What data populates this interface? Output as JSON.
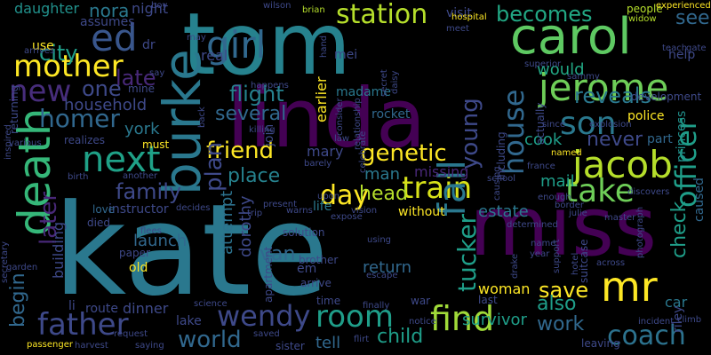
{
  "words": [
    {
      "text": "kate",
      "color": "#2a788e"
    },
    {
      "text": "tom",
      "color": "#26828e"
    },
    {
      "text": "linda",
      "color": "#440154"
    },
    {
      "text": "miss",
      "color": "#440154"
    },
    {
      "text": "carol",
      "color": "#5ec962"
    },
    {
      "text": "mr",
      "color": "#fde725"
    },
    {
      "text": "burke",
      "color": "#2a788e"
    },
    {
      "text": "jacob",
      "color": "#b5de2b"
    },
    {
      "text": "jerome",
      "color": "#6ece58"
    },
    {
      "text": "girl",
      "color": "#31688e"
    },
    {
      "text": "death",
      "color": "#35b779"
    },
    {
      "text": "mother",
      "color": "#fde725"
    },
    {
      "text": "father",
      "color": "#3e4989"
    },
    {
      "text": "room",
      "color": "#1f9e89"
    },
    {
      "text": "find",
      "color": "#a0da39"
    },
    {
      "text": "coach",
      "color": "#2c728e"
    },
    {
      "text": "train",
      "color": "#d8e219"
    },
    {
      "text": "son",
      "color": "#2a788e"
    },
    {
      "text": "take",
      "color": "#6ece58"
    },
    {
      "text": "ed",
      "color": "#39568c"
    },
    {
      "text": "next",
      "color": "#1fa187"
    },
    {
      "text": "new",
      "color": "#472d7b"
    },
    {
      "text": "fall",
      "color": "#2a788e"
    },
    {
      "text": "house",
      "color": "#31688e"
    },
    {
      "text": "wendy",
      "color": "#3e4989"
    },
    {
      "text": "day",
      "color": "#fde725"
    },
    {
      "text": "homer",
      "color": "#31688e"
    },
    {
      "text": "officer",
      "color": "#1f9e89"
    },
    {
      "text": "station",
      "color": "#b5de2b"
    },
    {
      "text": "family",
      "color": "#3e4989"
    },
    {
      "text": "friend",
      "color": "#fde725"
    },
    {
      "text": "genetic",
      "color": "#fde725"
    },
    {
      "text": "young",
      "color": "#3e4989"
    },
    {
      "text": "tucker",
      "color": "#1f9e89"
    },
    {
      "text": "later",
      "color": "#482878"
    },
    {
      "text": "save",
      "color": "#fde725"
    },
    {
      "text": "world",
      "color": "#31688e"
    },
    {
      "text": "becomes",
      "color": "#22a884"
    },
    {
      "text": "reveals",
      "color": "#2a788e"
    },
    {
      "text": "one",
      "color": "#3e4989"
    },
    {
      "text": "city",
      "color": "#1f9e89"
    },
    {
      "text": "several",
      "color": "#31688e"
    },
    {
      "text": "plan",
      "color": "#3e4989"
    },
    {
      "text": "flight",
      "color": "#26828e"
    },
    {
      "text": "late",
      "color": "#482878"
    },
    {
      "text": "never",
      "color": "#3e4989"
    },
    {
      "text": "see",
      "color": "#31688e"
    },
    {
      "text": "work",
      "color": "#31688e"
    },
    {
      "text": "also",
      "color": "#1f9e89"
    },
    {
      "text": "van",
      "color": "#31688e"
    },
    {
      "text": "child",
      "color": "#1f9e89"
    },
    {
      "text": "place",
      "color": "#26828e"
    },
    {
      "text": "head",
      "color": "#b5de2b"
    },
    {
      "text": "check",
      "color": "#1f9e89"
    },
    {
      "text": "begin",
      "color": "#31688e"
    },
    {
      "text": "household",
      "color": "#3e4989"
    },
    {
      "text": "estate",
      "color": "#2a788e"
    },
    {
      "text": "mail",
      "color": "#1f9e89"
    },
    {
      "text": "man",
      "color": "#2a788e"
    },
    {
      "text": "nora",
      "color": "#2a788e"
    },
    {
      "text": "would",
      "color": "#22a884"
    },
    {
      "text": "cook",
      "color": "#1f9e89"
    },
    {
      "text": "launch",
      "color": "#31688e"
    },
    {
      "text": "york",
      "color": "#2a788e"
    },
    {
      "text": "attempt",
      "color": "#2c728e"
    },
    {
      "text": "dorothy",
      "color": "#3e4989"
    },
    {
      "text": "return",
      "color": "#31688e"
    },
    {
      "text": "dinner",
      "color": "#3e4989"
    },
    {
      "text": "survivor",
      "color": "#1f9e89"
    },
    {
      "text": "tell",
      "color": "#31688e"
    },
    {
      "text": "woman",
      "color": "#fde725"
    },
    {
      "text": "mary",
      "color": "#3e4989"
    },
    {
      "text": "missing",
      "color": "#482878"
    },
    {
      "text": "building",
      "color": "#3e4989"
    },
    {
      "text": "daughter",
      "color": "#21918c"
    },
    {
      "text": "assumes",
      "color": "#3e4989"
    },
    {
      "text": "night",
      "color": "#3e4989"
    },
    {
      "text": "real",
      "color": "#3e4989"
    },
    {
      "text": "madame",
      "color": "#2a788e"
    },
    {
      "text": "earlier",
      "color": "#fde725"
    },
    {
      "text": "police",
      "color": "#fde725"
    },
    {
      "text": "car",
      "color": "#2a788e"
    },
    {
      "text": "riley",
      "color": "#3e4989"
    },
    {
      "text": "caused",
      "color": "#31688e"
    },
    {
      "text": "part",
      "color": "#31688e"
    },
    {
      "text": "development",
      "color": "#3e4989"
    },
    {
      "text": "help",
      "color": "#3e4989"
    },
    {
      "text": "princess",
      "color": "#21918c"
    },
    {
      "text": "rocket",
      "color": "#31688e"
    },
    {
      "text": "join",
      "color": "#3e4989"
    },
    {
      "text": "mei",
      "color": "#3e4989"
    },
    {
      "text": "instructor",
      "color": "#3e4989"
    },
    {
      "text": "love",
      "color": "#31688e"
    },
    {
      "text": "paper",
      "color": "#3e4989"
    },
    {
      "text": "old",
      "color": "#fde725"
    },
    {
      "text": "route",
      "color": "#3e4989"
    },
    {
      "text": "lake",
      "color": "#3e4989"
    },
    {
      "text": "sister",
      "color": "#3e4989"
    },
    {
      "text": "brother",
      "color": "#3e4989"
    },
    {
      "text": "arrive",
      "color": "#3e4989"
    },
    {
      "text": "em",
      "color": "#3e4989"
    },
    {
      "text": "life",
      "color": "#2a788e"
    },
    {
      "text": "without",
      "color": "#fde725"
    },
    {
      "text": "visit",
      "color": "#3e4989"
    },
    {
      "text": "use",
      "color": "#fde725"
    },
    {
      "text": "returning",
      "color": "#3e4989"
    },
    {
      "text": "realizes",
      "color": "#3e4989"
    },
    {
      "text": "mine",
      "color": "#3e4989"
    },
    {
      "text": "apartment",
      "color": "#3e4989"
    },
    {
      "text": "last",
      "color": "#3e4989"
    },
    {
      "text": "war",
      "color": "#3e4989"
    },
    {
      "text": "time",
      "color": "#3e4989"
    },
    {
      "text": "solution",
      "color": "#3e4989"
    },
    {
      "text": "including",
      "color": "#3e4989"
    },
    {
      "text": "actually",
      "color": "#3e4989"
    },
    {
      "text": "suitcase",
      "color": "#3e4989"
    },
    {
      "text": "leaving",
      "color": "#3e4989"
    },
    {
      "text": "hospital",
      "color": "#fde725"
    },
    {
      "text": "brian",
      "color": "#b5de2b"
    },
    {
      "text": "people",
      "color": "#b5de2b"
    },
    {
      "text": "experienced",
      "color": "#fde725"
    },
    {
      "text": "widow",
      "color": "#b5de2b"
    },
    {
      "text": "dr",
      "color": "#3e4989"
    },
    {
      "text": "must",
      "color": "#fde725"
    },
    {
      "text": "li",
      "color": "#3e4989"
    },
    {
      "text": "science",
      "color": "#3e4989"
    },
    {
      "text": "passenger",
      "color": "#fde725"
    },
    {
      "text": "harvest",
      "color": "#3e4989"
    },
    {
      "text": "saying",
      "color": "#3e4989"
    },
    {
      "text": "saved",
      "color": "#3e4989"
    },
    {
      "text": "finally",
      "color": "#3e4989"
    },
    {
      "text": "using",
      "color": "#3e4989"
    },
    {
      "text": "name",
      "color": "#3e4989"
    },
    {
      "text": "year",
      "color": "#3e4989"
    },
    {
      "text": "photograph",
      "color": "#3e4989"
    },
    {
      "text": "across",
      "color": "#3e4989"
    },
    {
      "text": "master",
      "color": "#3e4989"
    },
    {
      "text": "julie",
      "color": "#3e4989"
    },
    {
      "text": "discovers",
      "color": "#3e4989"
    },
    {
      "text": "named",
      "color": "#fde725"
    },
    {
      "text": "france",
      "color": "#3e4989"
    },
    {
      "text": "law",
      "color": "#3e4989"
    },
    {
      "text": "barely",
      "color": "#3e4989"
    },
    {
      "text": "died",
      "color": "#3e4989"
    },
    {
      "text": "decides",
      "color": "#3e4989"
    },
    {
      "text": "trip",
      "color": "#3e4989"
    },
    {
      "text": "present",
      "color": "#3e4989"
    },
    {
      "text": "upon",
      "color": "#3e4989"
    },
    {
      "text": "warns",
      "color": "#3e4989"
    },
    {
      "text": "vision",
      "color": "#3e4989"
    },
    {
      "text": "expose",
      "color": "#3e4989"
    },
    {
      "text": "determined",
      "color": "#3e4989"
    },
    {
      "text": "since",
      "color": "#3e4989"
    },
    {
      "text": "killing",
      "color": "#3e4989"
    },
    {
      "text": "happens",
      "color": "#3e4989"
    },
    {
      "text": "secretary",
      "color": "#3e4989"
    },
    {
      "text": "various",
      "color": "#3e4989"
    },
    {
      "text": "inspired",
      "color": "#3e4989"
    },
    {
      "text": "garden",
      "color": "#3e4989"
    },
    {
      "text": "another",
      "color": "#3e4989"
    },
    {
      "text": "birth",
      "color": "#3e4989"
    },
    {
      "text": "flees",
      "color": "#3e4989"
    },
    {
      "text": "request",
      "color": "#3e4989"
    },
    {
      "text": "arrives",
      "color": "#3e4989"
    },
    {
      "text": "wilson",
      "color": "#3e4989"
    },
    {
      "text": "meet",
      "color": "#3e4989"
    },
    {
      "text": "superior",
      "color": "#3e4989"
    },
    {
      "text": "teach",
      "color": "#3e4989"
    },
    {
      "text": "gate",
      "color": "#3e4989"
    },
    {
      "text": "sammy",
      "color": "#3e4989"
    },
    {
      "text": "explosion",
      "color": "#3e4989"
    },
    {
      "text": "enough",
      "color": "#3e4989"
    },
    {
      "text": "border",
      "color": "#3e4989"
    },
    {
      "text": "school",
      "color": "#3e4989"
    },
    {
      "text": "incident",
      "color": "#3e4989"
    },
    {
      "text": "climb",
      "color": "#3e4989"
    },
    {
      "text": "notice",
      "color": "#3e4989"
    },
    {
      "text": "flirt",
      "color": "#3e4989"
    },
    {
      "text": "back",
      "color": "#3e4989"
    },
    {
      "text": "say",
      "color": "#3e4989"
    },
    {
      "text": "may",
      "color": "#3e4989"
    },
    {
      "text": "boy",
      "color": "#3e4989"
    },
    {
      "text": "hand",
      "color": "#3e4989"
    },
    {
      "text": "secret",
      "color": "#3e4989"
    },
    {
      "text": "daisy",
      "color": "#3e4989"
    },
    {
      "text": "consider",
      "color": "#3e4989"
    },
    {
      "text": "relationship",
      "color": "#3e4989"
    },
    {
      "text": "celebrate",
      "color": "#3e4989"
    },
    {
      "text": "causing",
      "color": "#3e4989"
    },
    {
      "text": "escape",
      "color": "#3e4989"
    },
    {
      "text": "hotel",
      "color": "#3e4989"
    },
    {
      "text": "drake",
      "color": "#3e4989"
    },
    {
      "text": "support",
      "color": "#3e4989"
    }
  ]
}
